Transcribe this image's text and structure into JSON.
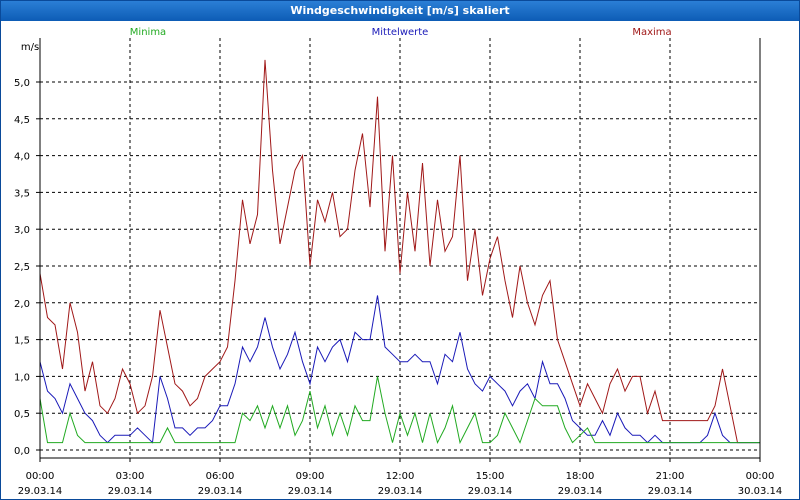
{
  "window": {
    "title": "Windgeschwindigkeit [m/s] skaliert"
  },
  "colors": {
    "Minima": "#22aa22",
    "Mittelwerte": "#1a1ab8",
    "Maxima": "#a01818",
    "grid": "#000000",
    "titlebar": "#0d5cb5"
  },
  "chart_data": {
    "type": "line",
    "title": "Windgeschwindigkeit [m/s] skaliert",
    "ylabel": "m/s",
    "xlabel": "",
    "ylim": [
      0,
      5.3
    ],
    "xlim": [
      0,
      24
    ],
    "grid": true,
    "legend_position": "top",
    "y_ticks": [
      "0,0",
      "0,5",
      "1,0",
      "1,5",
      "2,0",
      "2,5",
      "3,0",
      "3,5",
      "4,0",
      "4,5",
      "5,0"
    ],
    "x_ticks": [
      {
        "time": "00:00",
        "date": "29.03.14"
      },
      {
        "time": "03:00",
        "date": "29.03.14"
      },
      {
        "time": "06:00",
        "date": "29.03.14"
      },
      {
        "time": "09:00",
        "date": "29.03.14"
      },
      {
        "time": "12:00",
        "date": "29.03.14"
      },
      {
        "time": "15:00",
        "date": "29.03.14"
      },
      {
        "time": "18:00",
        "date": "29.03.14"
      },
      {
        "time": "21:00",
        "date": "29.03.14"
      },
      {
        "time": "00:00",
        "date": "30.03.14"
      }
    ],
    "x_hours": [
      0,
      0.25,
      0.5,
      0.75,
      1,
      1.25,
      1.5,
      1.75,
      2,
      2.25,
      2.5,
      2.75,
      3,
      3.25,
      3.5,
      3.75,
      4,
      4.25,
      4.5,
      4.75,
      5,
      5.25,
      5.5,
      5.75,
      6,
      6.25,
      6.5,
      6.75,
      7,
      7.25,
      7.5,
      7.75,
      8,
      8.25,
      8.5,
      8.75,
      9,
      9.25,
      9.5,
      9.75,
      10,
      10.25,
      10.5,
      10.75,
      11,
      11.25,
      11.5,
      11.75,
      12,
      12.25,
      12.5,
      12.75,
      13,
      13.25,
      13.5,
      13.75,
      14,
      14.25,
      14.5,
      14.75,
      15,
      15.25,
      15.5,
      15.75,
      16,
      16.25,
      16.5,
      16.75,
      17,
      17.25,
      17.5,
      17.75,
      18,
      18.25,
      18.5,
      18.75,
      19,
      19.25,
      19.5,
      19.75,
      20,
      20.25,
      20.5,
      20.75,
      21,
      21.25,
      21.5,
      21.75,
      22,
      22.25,
      22.5,
      22.75,
      23,
      23.25,
      23.5,
      23.75,
      24
    ],
    "series": [
      {
        "name": "Maxima",
        "color": "#a01818",
        "values": [
          2.4,
          1.8,
          1.7,
          1.1,
          2.0,
          1.6,
          0.8,
          1.2,
          0.6,
          0.5,
          0.7,
          1.1,
          0.9,
          0.5,
          0.6,
          1.0,
          1.9,
          1.4,
          0.9,
          0.8,
          0.6,
          0.7,
          1.0,
          1.1,
          1.2,
          1.4,
          2.3,
          3.4,
          2.8,
          3.2,
          5.3,
          3.8,
          2.8,
          3.3,
          3.8,
          4.0,
          2.5,
          3.4,
          3.1,
          3.5,
          2.9,
          3.0,
          3.8,
          4.3,
          3.3,
          4.8,
          2.7,
          4.0,
          2.4,
          3.5,
          2.7,
          3.9,
          2.5,
          3.4,
          2.7,
          2.9,
          4.0,
          2.3,
          3.0,
          2.1,
          2.6,
          2.9,
          2.3,
          1.8,
          2.5,
          2.0,
          1.7,
          2.1,
          2.3,
          1.5,
          1.2,
          0.9,
          0.6,
          0.9,
          0.7,
          0.5,
          0.9,
          1.1,
          0.8,
          1.0,
          1.0,
          0.5,
          0.8,
          0.4,
          0.4,
          0.4,
          0.4,
          0.4,
          0.4,
          0.4,
          0.6,
          1.1,
          0.6,
          0.1,
          0.1,
          0.1,
          0.1
        ]
      },
      {
        "name": "Mittelwerte",
        "color": "#1a1ab8",
        "values": [
          1.2,
          0.8,
          0.7,
          0.5,
          0.9,
          0.7,
          0.5,
          0.4,
          0.2,
          0.1,
          0.2,
          0.2,
          0.2,
          0.3,
          0.2,
          0.1,
          1.0,
          0.7,
          0.3,
          0.3,
          0.2,
          0.3,
          0.3,
          0.4,
          0.6,
          0.6,
          0.9,
          1.4,
          1.2,
          1.4,
          1.8,
          1.4,
          1.1,
          1.3,
          1.6,
          1.2,
          0.9,
          1.4,
          1.2,
          1.4,
          1.5,
          1.2,
          1.6,
          1.5,
          1.5,
          2.1,
          1.4,
          1.3,
          1.2,
          1.2,
          1.3,
          1.2,
          1.2,
          0.9,
          1.3,
          1.2,
          1.6,
          1.1,
          0.9,
          0.8,
          1.0,
          0.9,
          0.8,
          0.6,
          0.8,
          0.9,
          0.7,
          1.2,
          0.9,
          0.9,
          0.7,
          0.4,
          0.3,
          0.2,
          0.2,
          0.4,
          0.2,
          0.5,
          0.3,
          0.2,
          0.2,
          0.1,
          0.2,
          0.1,
          0.1,
          0.1,
          0.1,
          0.1,
          0.1,
          0.2,
          0.5,
          0.2,
          0.1,
          0.1,
          0.1,
          0.1,
          0.1
        ]
      },
      {
        "name": "Minima",
        "color": "#22aa22",
        "values": [
          0.7,
          0.1,
          0.1,
          0.1,
          0.5,
          0.2,
          0.1,
          0.1,
          0.1,
          0.1,
          0.1,
          0.1,
          0.1,
          0.1,
          0.1,
          0.1,
          0.1,
          0.3,
          0.1,
          0.1,
          0.1,
          0.1,
          0.1,
          0.1,
          0.1,
          0.1,
          0.1,
          0.5,
          0.4,
          0.6,
          0.3,
          0.6,
          0.3,
          0.6,
          0.2,
          0.4,
          0.8,
          0.3,
          0.6,
          0.2,
          0.5,
          0.2,
          0.6,
          0.4,
          0.4,
          1.0,
          0.5,
          0.1,
          0.5,
          0.2,
          0.5,
          0.1,
          0.5,
          0.1,
          0.3,
          0.6,
          0.1,
          0.3,
          0.5,
          0.1,
          0.1,
          0.2,
          0.5,
          0.3,
          0.1,
          0.4,
          0.7,
          0.6,
          0.6,
          0.6,
          0.3,
          0.1,
          0.2,
          0.3,
          0.1,
          0.1,
          0.1,
          0.1,
          0.1,
          0.1,
          0.1,
          0.1,
          0.1,
          0.1,
          0.1,
          0.1,
          0.1,
          0.1,
          0.1,
          0.1,
          0.1,
          0.1,
          0.1,
          0.1,
          0.1,
          0.1,
          0.1
        ]
      }
    ]
  }
}
